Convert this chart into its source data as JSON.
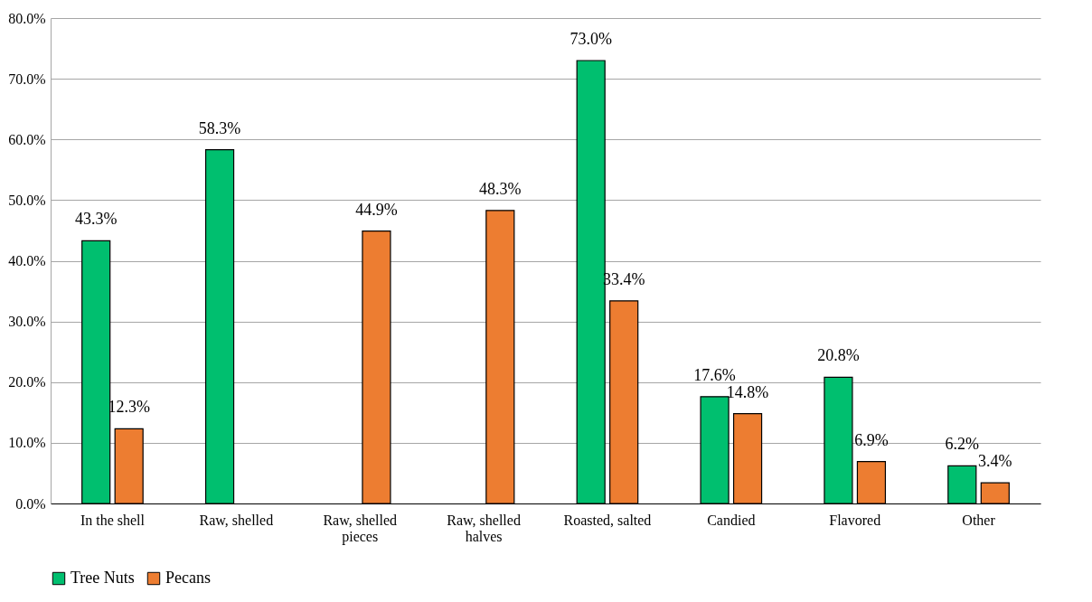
{
  "chart_data": {
    "type": "bar",
    "categories": [
      "In the shell",
      "Raw, shelled",
      "Raw, shelled pieces",
      "Raw, shelled halves",
      "Roasted, salted",
      "Candied",
      "Flavored",
      "Other"
    ],
    "series": [
      {
        "name": "Tree Nuts",
        "color": "#00bf6f",
        "values": [
          43.3,
          58.3,
          null,
          null,
          73.0,
          17.6,
          20.8,
          6.2
        ],
        "value_labels": [
          "43.3%",
          "58.3%",
          null,
          null,
          "73.0%",
          "17.6%",
          "20.8%",
          "6.2%"
        ]
      },
      {
        "name": "Pecans",
        "color": "#ed7d31",
        "values": [
          12.3,
          null,
          44.9,
          48.3,
          33.4,
          14.8,
          6.9,
          3.4
        ],
        "value_labels": [
          "12.3%",
          null,
          "44.9%",
          "48.3%",
          "33.4%",
          "14.8%",
          "6.9%",
          "3.4%"
        ]
      }
    ],
    "ylim": [
      0,
      80
    ],
    "yticks": [
      {
        "value": 0,
        "label": "0.0%"
      },
      {
        "value": 10,
        "label": "10.0%"
      },
      {
        "value": 20,
        "label": "20.0%"
      },
      {
        "value": 30,
        "label": "30.0%"
      },
      {
        "value": 40,
        "label": "40.0%"
      },
      {
        "value": 50,
        "label": "50.0%"
      },
      {
        "value": 60,
        "label": "60.0%"
      },
      {
        "value": 70,
        "label": "70.0%"
      },
      {
        "value": 80,
        "label": "80.0%"
      }
    ],
    "grid": "y",
    "legend": "bottom"
  }
}
